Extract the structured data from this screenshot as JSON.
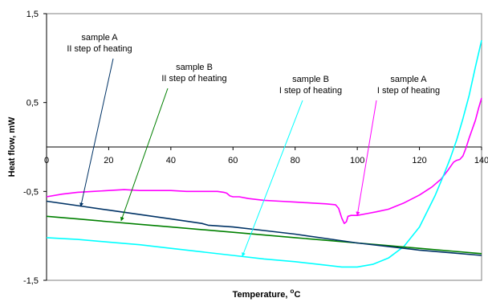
{
  "chart_data": {
    "type": "line",
    "xlabel": "Temperature, °C",
    "ylabel": "Heat flow, mW",
    "xlim": [
      0,
      140
    ],
    "ylim": [
      -1.5,
      1.5
    ],
    "xticks": [
      "0",
      "20",
      "40",
      "60",
      "80",
      "100",
      "120",
      "140"
    ],
    "yticks": [
      "1,5",
      "0,5",
      "-0,5",
      "-1,5"
    ],
    "grid": false,
    "legend": "none",
    "series": [
      {
        "color": "#ff00ff",
        "x": [
          0,
          5,
          10,
          15,
          20,
          25,
          30,
          35,
          40,
          45,
          50,
          55,
          57,
          58,
          59,
          60,
          62,
          65,
          70,
          75,
          80,
          85,
          90,
          93,
          94,
          95,
          95.8,
          96.5,
          97,
          98,
          100,
          103,
          106,
          110,
          115,
          120,
          124,
          127,
          129,
          130,
          131,
          132,
          133,
          134,
          135,
          136,
          137,
          138,
          139,
          140
        ],
        "y": [
          -0.56,
          -0.53,
          -0.51,
          -0.5,
          -0.49,
          -0.48,
          -0.49,
          -0.49,
          -0.49,
          -0.5,
          -0.5,
          -0.5,
          -0.51,
          -0.52,
          -0.55,
          -0.56,
          -0.56,
          -0.58,
          -0.6,
          -0.61,
          -0.62,
          -0.63,
          -0.64,
          -0.65,
          -0.69,
          -0.8,
          -0.86,
          -0.84,
          -0.78,
          -0.77,
          -0.77,
          -0.75,
          -0.73,
          -0.7,
          -0.63,
          -0.54,
          -0.45,
          -0.36,
          -0.27,
          -0.22,
          -0.17,
          -0.15,
          -0.14,
          -0.1,
          -0.01,
          0.1,
          0.2,
          0.3,
          0.43,
          0.55
        ]
      },
      {
        "color": "#00ffff",
        "x": [
          0,
          10,
          20,
          30,
          40,
          50,
          60,
          70,
          80,
          90,
          95,
          100,
          105,
          110,
          115,
          120,
          125,
          128,
          130,
          132,
          134,
          136,
          138,
          140
        ],
        "y": [
          -1.02,
          -1.04,
          -1.07,
          -1.1,
          -1.14,
          -1.18,
          -1.22,
          -1.26,
          -1.29,
          -1.33,
          -1.35,
          -1.35,
          -1.32,
          -1.25,
          -1.12,
          -0.9,
          -0.55,
          -0.3,
          -0.12,
          0.08,
          0.32,
          0.58,
          0.9,
          1.2
        ]
      },
      {
        "color": "#008000",
        "x": [
          0,
          10,
          20,
          30,
          40,
          50,
          60,
          70,
          80,
          90,
          100,
          110,
          120,
          130,
          140
        ],
        "y": [
          -0.78,
          -0.81,
          -0.84,
          -0.87,
          -0.9,
          -0.93,
          -0.96,
          -0.99,
          -1.02,
          -1.05,
          -1.08,
          -1.11,
          -1.14,
          -1.17,
          -1.2
        ]
      },
      {
        "color": "#003366",
        "x": [
          0,
          10,
          20,
          30,
          40,
          50,
          52,
          60,
          70,
          80,
          90,
          100,
          110,
          120,
          130,
          140
        ],
        "y": [
          -0.61,
          -0.66,
          -0.71,
          -0.76,
          -0.81,
          -0.86,
          -0.88,
          -0.9,
          -0.94,
          -0.98,
          -1.03,
          -1.08,
          -1.12,
          -1.16,
          -1.19,
          -1.22
        ]
      }
    ],
    "annotations": [
      {
        "lines": [
          "sample A",
          "II step of heating"
        ],
        "color": "#003366",
        "pointer_x": 11,
        "pointer_y": -0.67
      },
      {
        "lines": [
          "sample B",
          "II step of heating"
        ],
        "color": "#008000",
        "pointer_x": 24,
        "pointer_y": -0.83
      },
      {
        "lines": [
          "sample B",
          "I step of heating"
        ],
        "color": "#00ffff",
        "pointer_x": 63,
        "pointer_y": -1.23
      },
      {
        "lines": [
          "sample A",
          "I step of heating"
        ],
        "color": "#ff00ff",
        "pointer_x": 100,
        "pointer_y": -0.77
      }
    ]
  }
}
